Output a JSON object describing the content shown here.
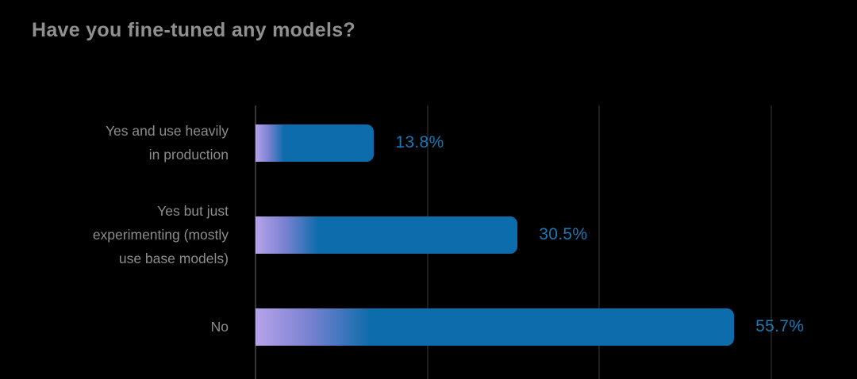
{
  "title": "Have you fine-tuned any models?",
  "chart_data": {
    "type": "bar",
    "orientation": "horizontal",
    "title": "Have you fine-tuned any models?",
    "categories": [
      [
        "Yes and use heavily",
        "in production"
      ],
      [
        "Yes but just",
        "experimenting (mostly",
        "use base models)"
      ],
      [
        "No"
      ]
    ],
    "category_names": [
      "Yes and use heavily in production",
      "Yes but just experimenting (mostly use base models)",
      "No"
    ],
    "values": [
      13.8,
      30.5,
      55.7
    ],
    "value_labels": [
      "13.8%",
      "30.5%",
      "55.7%"
    ],
    "unit": "%",
    "xlabel": "",
    "ylabel": "",
    "xlim": [
      0,
      70
    ],
    "gridline_values": [
      0,
      20,
      40,
      60
    ],
    "grid": true,
    "legend": false,
    "colors": {
      "background": "#000000",
      "title_text": "#909090",
      "category_label_text": "#8d8d8d",
      "bar_gradient_start": "#b6a3ea",
      "bar_fill_blue": "#0d6cab",
      "value_label_text": "#1a78b6",
      "axis_line": "#353535",
      "gridline": "#1d1d1d"
    }
  }
}
